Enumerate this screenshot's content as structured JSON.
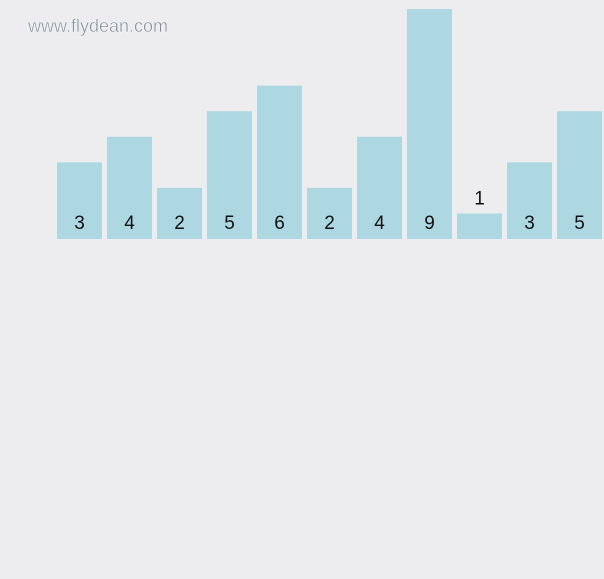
{
  "watermark": "www.flydean.com",
  "chart_data": {
    "type": "bar",
    "values": [
      3,
      4,
      2,
      5,
      6,
      2,
      4,
      9,
      1,
      3,
      5
    ],
    "color": "#add8e2"
  }
}
